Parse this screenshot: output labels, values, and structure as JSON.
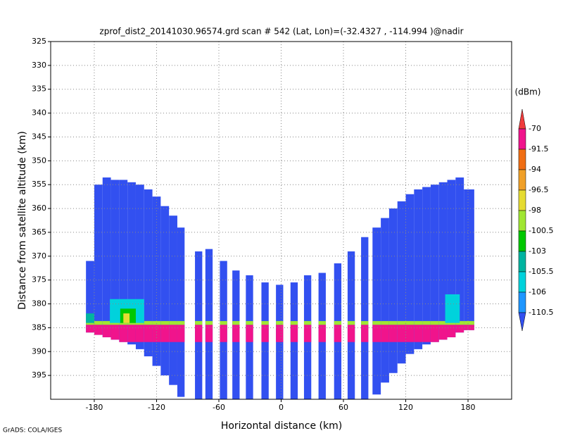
{
  "chart_data": {
    "type": "profile",
    "title": "zprof_dist2_20141030.96574.grd  scan # 542  (Lat, Lon)=(-32.4327 , -114.994 )@nadir",
    "x_label": "Horizontal distance (km)",
    "y_label": "Distance from satellite altitude (km)",
    "colorbar_unit": "(dBm)",
    "footer": "GrADS: COLA/IGES",
    "xlim": [
      -222,
      222
    ],
    "ylim": [
      325,
      400
    ],
    "y_inverted": true,
    "xticks": [
      -180,
      -120,
      -60,
      0,
      60,
      120,
      180
    ],
    "yticks": [
      325,
      330,
      335,
      340,
      345,
      350,
      355,
      360,
      365,
      370,
      375,
      380,
      385,
      390,
      395
    ],
    "grid": true,
    "levels": [
      -70,
      -91.5,
      -94,
      -96.5,
      -98,
      -100.5,
      -103,
      -105.5,
      -106,
      -110.5
    ],
    "colors": [
      "#f03c3c",
      "#f0148c",
      "#f06e14",
      "#f0a028",
      "#e6dc32",
      "#a0e632",
      "#00c800",
      "#00b4a0",
      "#00d2dc",
      "#1e96ff",
      "#3250f0"
    ],
    "columns": [
      {
        "x": [
          -188,
          -180
        ],
        "top": 371,
        "bottom": 386,
        "value": -112
      },
      {
        "x": [
          -180,
          -172
        ],
        "top": 355,
        "bottom": 386.5,
        "value": -112
      },
      {
        "x": [
          -172,
          -164
        ],
        "top": 353.5,
        "bottom": 387,
        "value": -112
      },
      {
        "x": [
          -164,
          -156
        ],
        "top": 354,
        "bottom": 387.5,
        "value": -112
      },
      {
        "x": [
          -156,
          -148
        ],
        "top": 354,
        "bottom": 388,
        "value": -112
      },
      {
        "x": [
          -148,
          -140
        ],
        "top": 354.5,
        "bottom": 388.5,
        "value": -112
      },
      {
        "x": [
          -140,
          -132
        ],
        "top": 355,
        "bottom": 389.5,
        "value": -112
      },
      {
        "x": [
          -132,
          -124
        ],
        "top": 356,
        "bottom": 391,
        "value": -112
      },
      {
        "x": [
          -124,
          -116
        ],
        "top": 357.5,
        "bottom": 393,
        "value": -112
      },
      {
        "x": [
          -116,
          -108
        ],
        "top": 359.5,
        "bottom": 395,
        "value": -112
      },
      {
        "x": [
          -108,
          -100
        ],
        "top": 361.5,
        "bottom": 397,
        "value": -112
      },
      {
        "x": [
          -100,
          -93
        ],
        "top": 364,
        "bottom": 399.5,
        "value": -112
      },
      {
        "x": [
          -83,
          -76
        ],
        "top": 369,
        "bottom": 400,
        "value": -112
      },
      {
        "x": [
          -73,
          -66
        ],
        "top": 368.5,
        "bottom": 400,
        "value": -112
      },
      {
        "x": [
          -59,
          -52
        ],
        "top": 371,
        "bottom": 400,
        "value": -112
      },
      {
        "x": [
          -47,
          -40
        ],
        "top": 373,
        "bottom": 400,
        "value": -112
      },
      {
        "x": [
          -34,
          -27
        ],
        "top": 374,
        "bottom": 400,
        "value": -112
      },
      {
        "x": [
          -19,
          -12
        ],
        "top": 375.5,
        "bottom": 400,
        "value": -112
      },
      {
        "x": [
          -5,
          2
        ],
        "top": 376,
        "bottom": 400,
        "value": -112
      },
      {
        "x": [
          9,
          16
        ],
        "top": 375.5,
        "bottom": 400,
        "value": -112
      },
      {
        "x": [
          22,
          29
        ],
        "top": 374,
        "bottom": 400,
        "value": -112
      },
      {
        "x": [
          36,
          43
        ],
        "top": 373.5,
        "bottom": 400,
        "value": -112
      },
      {
        "x": [
          51,
          58
        ],
        "top": 371.5,
        "bottom": 400,
        "value": -112
      },
      {
        "x": [
          64,
          71
        ],
        "top": 369,
        "bottom": 400,
        "value": -112
      },
      {
        "x": [
          77,
          84
        ],
        "top": 366,
        "bottom": 400,
        "value": -112
      },
      {
        "x": [
          88,
          96
        ],
        "top": 364,
        "bottom": 399,
        "value": -112
      },
      {
        "x": [
          96,
          104
        ],
        "top": 362,
        "bottom": 396.5,
        "value": -112
      },
      {
        "x": [
          104,
          112
        ],
        "top": 360,
        "bottom": 394.5,
        "value": -112
      },
      {
        "x": [
          112,
          120
        ],
        "top": 358.5,
        "bottom": 392.5,
        "value": -112
      },
      {
        "x": [
          120,
          128
        ],
        "top": 357,
        "bottom": 390.5,
        "value": -112
      },
      {
        "x": [
          128,
          136
        ],
        "top": 356,
        "bottom": 389.5,
        "value": -112
      },
      {
        "x": [
          136,
          144
        ],
        "top": 355.5,
        "bottom": 388.5,
        "value": -112
      },
      {
        "x": [
          144,
          152
        ],
        "top": 355,
        "bottom": 388,
        "value": -112
      },
      {
        "x": [
          152,
          160
        ],
        "top": 354.5,
        "bottom": 387.5,
        "value": -112
      },
      {
        "x": [
          160,
          168
        ],
        "top": 354,
        "bottom": 387,
        "value": -112
      },
      {
        "x": [
          168,
          176
        ],
        "top": 353.5,
        "bottom": 386,
        "value": -112
      },
      {
        "x": [
          176,
          186
        ],
        "top": 356,
        "bottom": 385.5,
        "value": -112
      }
    ],
    "features": [
      {
        "x": [
          -165,
          -132
        ],
        "y": [
          379,
          384
        ],
        "value": -105.8
      },
      {
        "x": [
          -155,
          -140
        ],
        "y": [
          381,
          384
        ],
        "value": -101
      },
      {
        "x": [
          -152,
          -146
        ],
        "y": [
          382,
          384
        ],
        "value": -97
      },
      {
        "x": [
          -188,
          -180
        ],
        "y": [
          382,
          384
        ],
        "value": -104
      },
      {
        "x": [
          158,
          172
        ],
        "y": [
          378,
          384
        ],
        "value": -105.8
      }
    ],
    "rim": {
      "top": 383.6,
      "bottom": 384.4,
      "value": -99
    },
    "surface": {
      "top": 384.4,
      "bottom": 388,
      "value": -85
    }
  }
}
